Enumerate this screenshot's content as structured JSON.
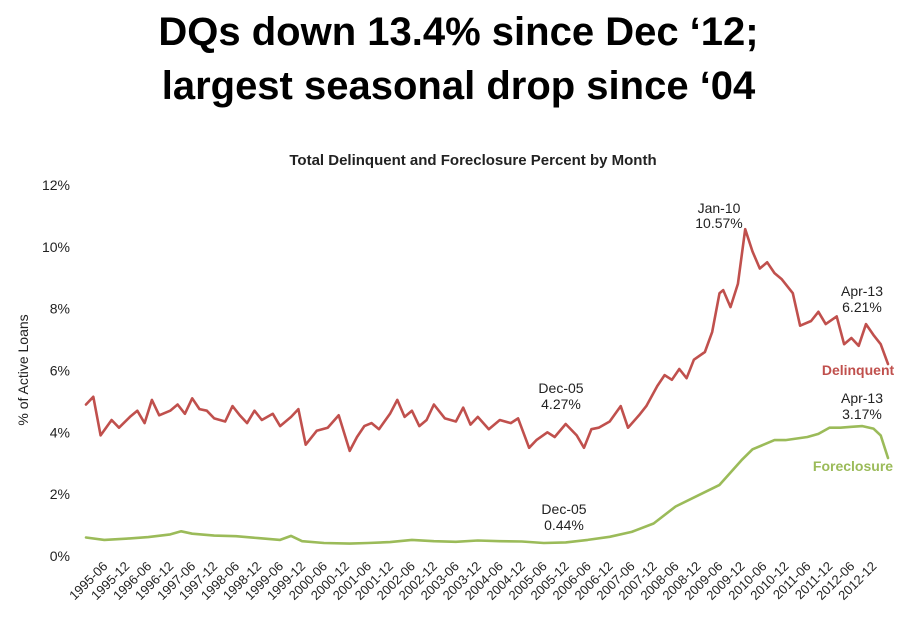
{
  "headline": {
    "line1": "DQs down 13.4% since Dec ‘12;",
    "line2": "largest seasonal drop since ‘04"
  },
  "chart_data": {
    "type": "line",
    "title": "Total Delinquent and Foreclosure Percent by Month",
    "xlabel": "",
    "ylabel": "% of Active Loans",
    "ylim": [
      0,
      12
    ],
    "ytick_values": [
      0,
      2,
      4,
      6,
      8,
      10,
      12
    ],
    "ytick_labels": [
      "0%",
      "2%",
      "4%",
      "6%",
      "8%",
      "10%",
      "12%"
    ],
    "x_start": "1995-01",
    "x_end": "2013-04",
    "xtick_labels": [
      "1995-06",
      "1995-12",
      "1996-06",
      "1996-12",
      "1997-06",
      "1997-12",
      "1998-06",
      "1998-12",
      "1999-06",
      "1999-12",
      "2000-06",
      "2000-12",
      "2001-06",
      "2001-12",
      "2002-06",
      "2002-12",
      "2003-06",
      "2003-12",
      "2004-06",
      "2004-12",
      "2005-06",
      "2005-12",
      "2006-06",
      "2006-12",
      "2007-06",
      "2007-12",
      "2008-06",
      "2008-12",
      "2009-06",
      "2009-12",
      "2010-06",
      "2010-12",
      "2011-06",
      "2011-12",
      "2012-06",
      "2012-12"
    ],
    "grid": false,
    "colors": {
      "delinquent": "#c0504d",
      "foreclosure": "#9bbb59"
    },
    "series": [
      {
        "name": "Delinquent",
        "label": "Delinquent",
        "anchors": [
          [
            "1995-01",
            4.9
          ],
          [
            "1995-03",
            5.15
          ],
          [
            "1995-05",
            3.9
          ],
          [
            "1995-08",
            4.4
          ],
          [
            "1995-10",
            4.15
          ],
          [
            "1996-01",
            4.5
          ],
          [
            "1996-03",
            4.7
          ],
          [
            "1996-05",
            4.3
          ],
          [
            "1996-07",
            5.05
          ],
          [
            "1996-09",
            4.55
          ],
          [
            "1996-12",
            4.7
          ],
          [
            "1997-02",
            4.9
          ],
          [
            "1997-04",
            4.6
          ],
          [
            "1997-06",
            5.1
          ],
          [
            "1997-08",
            4.75
          ],
          [
            "1997-10",
            4.7
          ],
          [
            "1997-12",
            4.45
          ],
          [
            "1998-03",
            4.35
          ],
          [
            "1998-05",
            4.85
          ],
          [
            "1998-07",
            4.55
          ],
          [
            "1998-09",
            4.3
          ],
          [
            "1998-11",
            4.7
          ],
          [
            "1999-01",
            4.4
          ],
          [
            "1999-04",
            4.6
          ],
          [
            "1999-06",
            4.2
          ],
          [
            "1999-09",
            4.5
          ],
          [
            "1999-11",
            4.75
          ],
          [
            "2000-01",
            3.6
          ],
          [
            "2000-04",
            4.05
          ],
          [
            "2000-07",
            4.15
          ],
          [
            "2000-10",
            4.55
          ],
          [
            "2001-01",
            3.4
          ],
          [
            "2001-03",
            3.85
          ],
          [
            "2001-05",
            4.2
          ],
          [
            "2001-07",
            4.3
          ],
          [
            "2001-09",
            4.1
          ],
          [
            "2001-12",
            4.6
          ],
          [
            "2002-02",
            5.05
          ],
          [
            "2002-04",
            4.5
          ],
          [
            "2002-06",
            4.7
          ],
          [
            "2002-08",
            4.2
          ],
          [
            "2002-10",
            4.4
          ],
          [
            "2002-12",
            4.9
          ],
          [
            "2003-03",
            4.45
          ],
          [
            "2003-06",
            4.35
          ],
          [
            "2003-08",
            4.8
          ],
          [
            "2003-10",
            4.25
          ],
          [
            "2003-12",
            4.5
          ],
          [
            "2004-03",
            4.1
          ],
          [
            "2004-06",
            4.4
          ],
          [
            "2004-09",
            4.3
          ],
          [
            "2004-11",
            4.45
          ],
          [
            "2005-02",
            3.5
          ],
          [
            "2005-04",
            3.75
          ],
          [
            "2005-07",
            4.0
          ],
          [
            "2005-09",
            3.85
          ],
          [
            "2005-12",
            4.27
          ],
          [
            "2006-03",
            3.9
          ],
          [
            "2006-05",
            3.5
          ],
          [
            "2006-07",
            4.1
          ],
          [
            "2006-09",
            4.15
          ],
          [
            "2006-12",
            4.35
          ],
          [
            "2007-03",
            4.85
          ],
          [
            "2007-05",
            4.15
          ],
          [
            "2007-08",
            4.55
          ],
          [
            "2007-10",
            4.85
          ],
          [
            "2008-01",
            5.5
          ],
          [
            "2008-03",
            5.85
          ],
          [
            "2008-05",
            5.7
          ],
          [
            "2008-07",
            6.05
          ],
          [
            "2008-09",
            5.75
          ],
          [
            "2008-11",
            6.35
          ],
          [
            "2009-02",
            6.6
          ],
          [
            "2009-04",
            7.25
          ],
          [
            "2009-06",
            8.5
          ],
          [
            "2009-07",
            8.6
          ],
          [
            "2009-09",
            8.05
          ],
          [
            "2009-11",
            8.8
          ],
          [
            "2010-01",
            10.57
          ],
          [
            "2010-03",
            9.85
          ],
          [
            "2010-05",
            9.3
          ],
          [
            "2010-07",
            9.5
          ],
          [
            "2010-09",
            9.15
          ],
          [
            "2010-11",
            8.95
          ],
          [
            "2011-02",
            8.5
          ],
          [
            "2011-04",
            7.45
          ],
          [
            "2011-07",
            7.6
          ],
          [
            "2011-09",
            7.9
          ],
          [
            "2011-11",
            7.5
          ],
          [
            "2012-02",
            7.75
          ],
          [
            "2012-04",
            6.85
          ],
          [
            "2012-06",
            7.05
          ],
          [
            "2012-08",
            6.8
          ],
          [
            "2012-10",
            7.5
          ],
          [
            "2012-12",
            7.15
          ],
          [
            "2013-02",
            6.85
          ],
          [
            "2013-04",
            6.21
          ]
        ]
      },
      {
        "name": "Foreclosure",
        "label": "Foreclosure",
        "anchors": [
          [
            "1995-01",
            0.6
          ],
          [
            "1995-06",
            0.52
          ],
          [
            "1996-01",
            0.57
          ],
          [
            "1996-06",
            0.61
          ],
          [
            "1996-12",
            0.7
          ],
          [
            "1997-03",
            0.8
          ],
          [
            "1997-06",
            0.72
          ],
          [
            "1997-12",
            0.66
          ],
          [
            "1998-06",
            0.64
          ],
          [
            "1998-12",
            0.58
          ],
          [
            "1999-06",
            0.52
          ],
          [
            "1999-09",
            0.65
          ],
          [
            "1999-12",
            0.48
          ],
          [
            "2000-06",
            0.42
          ],
          [
            "2001-01",
            0.4
          ],
          [
            "2001-06",
            0.42
          ],
          [
            "2001-12",
            0.45
          ],
          [
            "2002-06",
            0.52
          ],
          [
            "2002-12",
            0.48
          ],
          [
            "2003-06",
            0.46
          ],
          [
            "2003-12",
            0.5
          ],
          [
            "2004-06",
            0.48
          ],
          [
            "2004-12",
            0.47
          ],
          [
            "2005-06",
            0.42
          ],
          [
            "2005-12",
            0.44
          ],
          [
            "2006-06",
            0.52
          ],
          [
            "2006-12",
            0.62
          ],
          [
            "2007-06",
            0.78
          ],
          [
            "2007-12",
            1.05
          ],
          [
            "2008-06",
            1.6
          ],
          [
            "2008-12",
            1.95
          ],
          [
            "2009-06",
            2.3
          ],
          [
            "2009-12",
            3.1
          ],
          [
            "2010-03",
            3.45
          ],
          [
            "2010-06",
            3.6
          ],
          [
            "2010-09",
            3.75
          ],
          [
            "2010-12",
            3.75
          ],
          [
            "2011-06",
            3.85
          ],
          [
            "2011-09",
            3.95
          ],
          [
            "2011-12",
            4.15
          ],
          [
            "2012-03",
            4.15
          ],
          [
            "2012-06",
            4.18
          ],
          [
            "2012-09",
            4.2
          ],
          [
            "2012-12",
            4.12
          ],
          [
            "2013-02",
            3.9
          ],
          [
            "2013-04",
            3.17
          ]
        ]
      }
    ],
    "annotations": [
      {
        "key": "jan10",
        "line1": "Jan-10",
        "line2": "10.57%"
      },
      {
        "key": "dec05d",
        "line1": "Dec-05",
        "line2": "4.27%"
      },
      {
        "key": "apr13d",
        "line1": "Apr-13",
        "line2": "6.21%"
      },
      {
        "key": "dec05f",
        "line1": "Dec-05",
        "line2": "0.44%"
      },
      {
        "key": "apr13f",
        "line1": "Apr-13",
        "line2": "3.17%"
      }
    ]
  }
}
